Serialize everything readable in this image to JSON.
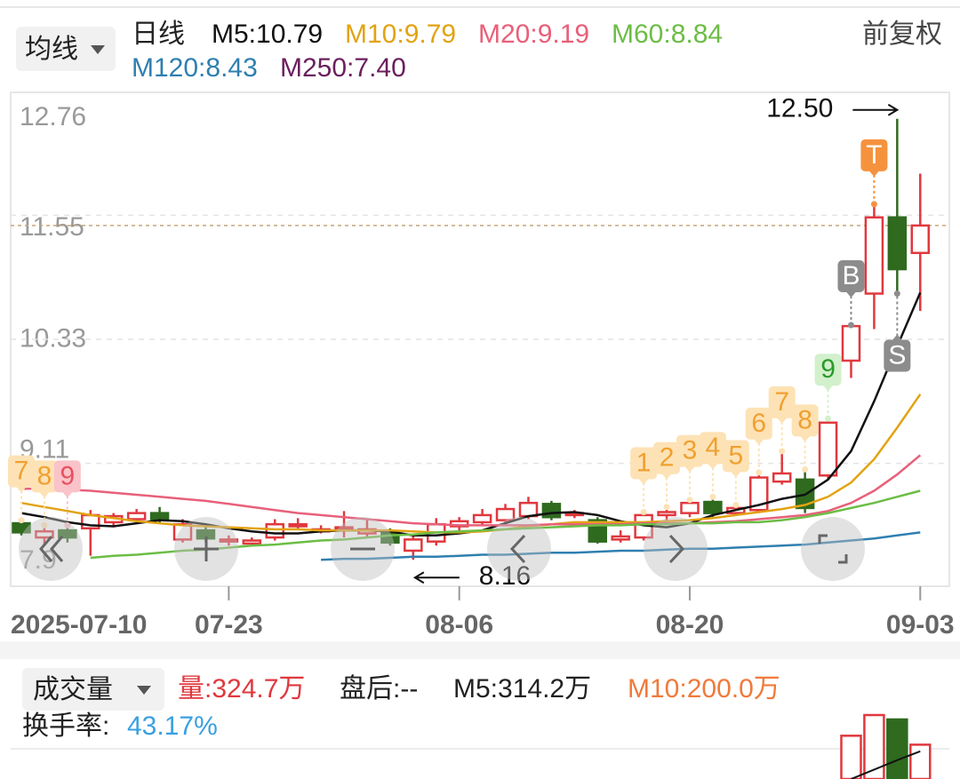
{
  "header": {
    "ma_button": "均线",
    "period": "日线",
    "adjust": "前复权"
  },
  "chart_data": {
    "type": "candlestick",
    "categories": [
      "2025-07-10",
      null,
      null,
      null,
      null,
      null,
      null,
      null,
      null,
      "07-23",
      null,
      null,
      null,
      null,
      null,
      null,
      null,
      null,
      null,
      "08-06",
      null,
      null,
      null,
      null,
      null,
      null,
      null,
      null,
      null,
      "08-20",
      null,
      null,
      null,
      null,
      null,
      null,
      null,
      null,
      null,
      "09-03"
    ],
    "open": [
      8.52,
      8.38,
      8.45,
      8.47,
      8.53,
      8.56,
      8.62,
      8.36,
      8.45,
      8.34,
      8.32,
      8.38,
      8.49,
      8.44,
      8.46,
      8.42,
      8.44,
      8.25,
      8.34,
      8.49,
      8.53,
      8.55,
      8.59,
      8.71,
      8.6,
      8.55,
      8.36,
      8.38,
      8.6,
      8.62,
      8.73,
      8.62,
      8.65,
      8.93,
      8.95,
      8.99,
      10.12,
      10.78,
      11.53,
      11.18
    ],
    "high": [
      8.55,
      8.5,
      8.5,
      8.65,
      8.62,
      8.66,
      8.68,
      8.56,
      8.5,
      8.4,
      8.38,
      8.56,
      8.57,
      8.5,
      8.64,
      8.55,
      8.47,
      8.4,
      8.57,
      8.58,
      8.66,
      8.71,
      8.78,
      8.74,
      8.65,
      8.58,
      8.45,
      8.63,
      8.68,
      8.75,
      8.78,
      8.7,
      9.02,
      9.23,
      9.05,
      9.55,
      10.47,
      11.66,
      12.5,
      11.96
    ],
    "low": [
      8.4,
      8.3,
      8.33,
      8.2,
      8.48,
      8.53,
      8.52,
      8.33,
      8.33,
      8.3,
      8.3,
      8.35,
      8.45,
      8.42,
      8.38,
      8.38,
      8.3,
      8.16,
      8.3,
      8.44,
      8.5,
      8.52,
      8.56,
      8.55,
      8.57,
      8.32,
      8.33,
      8.35,
      8.55,
      8.58,
      8.58,
      8.6,
      8.62,
      8.9,
      8.62,
      8.96,
      9.95,
      10.43,
      10.78,
      10.61
    ],
    "close": [
      8.43,
      8.44,
      8.38,
      8.6,
      8.59,
      8.62,
      8.56,
      8.51,
      8.37,
      8.36,
      8.35,
      8.51,
      8.51,
      8.46,
      8.48,
      8.46,
      8.33,
      8.36,
      8.51,
      8.54,
      8.6,
      8.66,
      8.72,
      8.58,
      8.62,
      8.34,
      8.39,
      8.6,
      8.63,
      8.72,
      8.62,
      8.67,
      8.97,
      9.01,
      8.67,
      9.51,
      10.46,
      11.53,
      11.02,
      11.45
    ],
    "up_color": "#e0383e",
    "down_color": "#2f6a1f",
    "close_line_color": "#c8a57a",
    "ylim": [
      7.9,
      12.76
    ],
    "yticks": [
      12.76,
      11.55,
      10.33,
      9.11,
      7.9
    ],
    "grid": true,
    "max_label": "12.50",
    "min_label": "8.16",
    "series": [
      {
        "name": "M5:10.79",
        "color": "#111111",
        "values": [
          8.62,
          8.58,
          8.53,
          8.5,
          8.49,
          8.52,
          8.55,
          8.54,
          8.51,
          8.47,
          8.44,
          8.42,
          8.42,
          8.44,
          8.45,
          8.45,
          8.44,
          8.4,
          8.4,
          8.42,
          8.45,
          8.52,
          8.59,
          8.62,
          8.63,
          8.6,
          8.54,
          8.5,
          8.48,
          8.52,
          8.6,
          8.65,
          8.7,
          8.76,
          8.8,
          8.95,
          9.23,
          9.72,
          10.26,
          10.79
        ]
      },
      {
        "name": "M10:9.79",
        "color": "#e2a313",
        "values": [
          8.72,
          8.68,
          8.64,
          8.6,
          8.57,
          8.54,
          8.52,
          8.5,
          8.49,
          8.48,
          8.47,
          8.46,
          8.46,
          8.45,
          8.45,
          8.45,
          8.45,
          8.44,
          8.43,
          8.43,
          8.44,
          8.46,
          8.49,
          8.51,
          8.53,
          8.53,
          8.53,
          8.53,
          8.54,
          8.55,
          8.57,
          8.6,
          8.63,
          8.66,
          8.7,
          8.78,
          8.92,
          9.15,
          9.46,
          9.79
        ]
      },
      {
        "name": "M20:9.19",
        "color": "#e8607a",
        "values": [
          8.86,
          8.86,
          8.85,
          8.84,
          8.82,
          8.8,
          8.78,
          8.76,
          8.74,
          8.71,
          8.68,
          8.65,
          8.62,
          8.6,
          8.58,
          8.56,
          8.54,
          8.52,
          8.51,
          8.5,
          8.5,
          8.5,
          8.5,
          8.51,
          8.51,
          8.51,
          8.51,
          8.52,
          8.52,
          8.52,
          8.53,
          8.54,
          8.56,
          8.58,
          8.6,
          8.64,
          8.72,
          8.84,
          9.0,
          9.19
        ]
      },
      {
        "name": "M60:8.84",
        "color": "#6cbd45",
        "values": [
          null,
          null,
          null,
          8.18,
          8.2,
          8.21,
          8.23,
          8.25,
          8.26,
          8.28,
          8.3,
          8.31,
          8.33,
          8.35,
          8.36,
          8.38,
          8.4,
          8.41,
          8.43,
          8.44,
          8.45,
          8.46,
          8.47,
          8.48,
          8.49,
          8.5,
          8.5,
          8.51,
          8.51,
          8.52,
          8.52,
          8.53,
          8.53,
          8.55,
          8.58,
          8.62,
          8.67,
          8.72,
          8.78,
          8.84
        ]
      },
      {
        "name": "M120:8.43",
        "color": "#2f7fb0",
        "values": [
          null,
          null,
          null,
          null,
          null,
          null,
          null,
          null,
          null,
          null,
          null,
          null,
          null,
          8.16,
          8.17,
          8.17,
          8.18,
          8.19,
          8.19,
          8.2,
          8.21,
          8.21,
          8.22,
          8.23,
          8.23,
          8.24,
          8.25,
          8.25,
          8.26,
          8.27,
          8.27,
          8.28,
          8.29,
          8.3,
          8.31,
          8.33,
          8.35,
          8.37,
          8.4,
          8.43
        ]
      },
      {
        "name": "M250:7.40",
        "color": "#6b1f5e",
        "values": [
          null,
          null,
          null,
          null,
          null,
          null,
          null,
          null,
          null,
          null,
          null,
          null,
          null,
          null,
          null,
          null,
          null,
          null,
          null,
          null,
          null,
          null,
          null,
          null,
          null,
          null,
          null,
          null,
          null,
          null,
          null,
          null,
          null,
          null,
          null,
          null,
          null,
          null,
          null,
          null
        ]
      }
    ],
    "signals": [
      {
        "label": "7",
        "color": "#f0a030",
        "background": "#fde2b5",
        "position": "above"
      },
      {
        "label": "8",
        "color": "#f0a030",
        "background": "#fde2b5",
        "position": "above"
      },
      {
        "label": "9",
        "color": "#e8505f",
        "background": "#f9c3c9",
        "position": "above"
      },
      null,
      null,
      null,
      null,
      null,
      null,
      null,
      null,
      null,
      null,
      null,
      null,
      null,
      null,
      null,
      null,
      null,
      null,
      null,
      null,
      null,
      null,
      null,
      null,
      {
        "label": "1",
        "color": "#f0a030",
        "background": "#fde2b5",
        "position": "above"
      },
      {
        "label": "2",
        "color": "#f0a030",
        "background": "#fde2b5",
        "position": "above"
      },
      {
        "label": "3",
        "color": "#f0a030",
        "background": "#fde2b5",
        "position": "above"
      },
      {
        "label": "4",
        "color": "#f0a030",
        "background": "#fde2b5",
        "position": "above"
      },
      {
        "label": "5",
        "color": "#f0a030",
        "background": "#fde2b5",
        "position": "above"
      },
      {
        "label": "6",
        "color": "#f0a030",
        "background": "#fde2b5",
        "position": "above"
      },
      {
        "label": "7",
        "color": "#f0a030",
        "background": "#fde2b5",
        "position": "above"
      },
      {
        "label": "8",
        "color": "#f0a030",
        "background": "#fde2b5",
        "position": "above"
      },
      {
        "label": "9",
        "color": "#2a9a2a",
        "background": "#d3f0cc",
        "position": "above"
      },
      {
        "label": "B",
        "color": "#ffffff",
        "background": "#8c8c8c",
        "position": "above"
      },
      {
        "label": "T",
        "color": "#ffffff",
        "background": "#f5923e",
        "position": "above"
      },
      {
        "label": "S",
        "color": "#ffffff",
        "background": "#8c8c8c",
        "position": "below"
      },
      null
    ],
    "volume": {
      "button": "成交量",
      "items": [
        {
          "text": "量:324.7万",
          "color": "#e0383e"
        },
        {
          "text": "盘后:--",
          "color": "#222222"
        },
        {
          "text": "M5:314.2万",
          "color": "#222222"
        },
        {
          "text": "M10:200.0万",
          "color": "#f07a3a"
        }
      ],
      "turnover_label": "换手率:",
      "turnover_value": "43.17%",
      "turnover_color": "#3aa0e0",
      "ylim": [
        270,
        440
      ],
      "values": [
        null,
        null,
        null,
        null,
        null,
        null,
        null,
        null,
        null,
        null,
        null,
        null,
        null,
        null,
        null,
        null,
        null,
        null,
        null,
        null,
        null,
        null,
        null,
        null,
        null,
        null,
        null,
        null,
        null,
        null,
        null,
        null,
        null,
        null,
        null,
        null,
        339,
        372,
        365,
        324.7
      ],
      "ma5": [
        null,
        null,
        null,
        null,
        null,
        null,
        null,
        null,
        null,
        null,
        null,
        null,
        null,
        null,
        null,
        null,
        null,
        null,
        null,
        null,
        null,
        null,
        null,
        null,
        null,
        null,
        null,
        null,
        null,
        null,
        null,
        null,
        null,
        null,
        null,
        null,
        270,
        285,
        300,
        314.2
      ],
      "ma5_color": "#111111"
    }
  }
}
